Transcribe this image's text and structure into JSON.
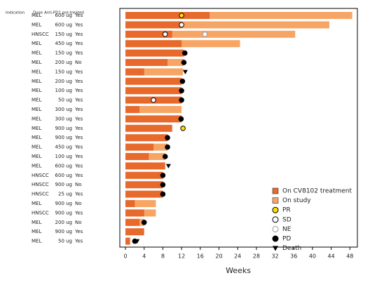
{
  "chart_data": {
    "type": "swimmer",
    "columns": [
      "Indication",
      "Dose",
      "Anti-PD1 pre-treated"
    ],
    "x_label": "Weeks",
    "xlim": [
      -1.2,
      49.6
    ],
    "xticks": [
      0,
      4,
      8,
      12,
      16,
      20,
      24,
      28,
      32,
      36,
      40,
      44,
      48
    ],
    "treatment_color": "#e8692c",
    "study_color": "#f7a564",
    "legend": [
      {
        "name": "On CV8102 treatment",
        "shape": "square",
        "fill": "#e8692c",
        "stroke": "#333"
      },
      {
        "name": "On study",
        "shape": "square",
        "fill": "#f7a564",
        "stroke": "#333"
      },
      {
        "name": "PR",
        "shape": "circle",
        "fill": "#ffe000",
        "stroke": "#000"
      },
      {
        "name": "SD",
        "shape": "circle",
        "fill": "#ffffff",
        "stroke": "#000"
      },
      {
        "name": "NE",
        "shape": "circle",
        "fill": "#ffffff",
        "stroke": "#999"
      },
      {
        "name": "PD",
        "shape": "circle",
        "fill": "#000000",
        "stroke": "#000"
      },
      {
        "name": "Death",
        "shape": "triangle",
        "fill": "#000000",
        "stroke": "#000"
      }
    ],
    "rows": [
      {
        "indication": "MEL",
        "dose": "600 ug",
        "pretreated": "Yes",
        "treatment": 18,
        "study": 48.5,
        "events": [
          {
            "kind": 2,
            "week": 12
          }
        ]
      },
      {
        "indication": "MEL",
        "dose": "600 ug",
        "pretreated": "Yes",
        "treatment": 12,
        "study": 43.6,
        "events": [
          {
            "kind": 3,
            "week": 12
          }
        ]
      },
      {
        "indication": "HNSCC",
        "dose": "150 ug",
        "pretreated": "Yes",
        "treatment": 10,
        "study": 36.3,
        "events": [
          {
            "kind": 3,
            "week": 8.5
          },
          {
            "kind": 4,
            "week": 17
          }
        ]
      },
      {
        "indication": "MEL",
        "dose": "450 ug",
        "pretreated": "Yes",
        "treatment": 12,
        "study": 24.5,
        "events": []
      },
      {
        "indication": "MEL",
        "dose": "150 ug",
        "pretreated": "Yes",
        "treatment": 12.5,
        "study": null,
        "events": [
          {
            "kind": 5,
            "week": 12.7
          }
        ]
      },
      {
        "indication": "MEL",
        "dose": "200 ug",
        "pretreated": "No",
        "treatment": 9,
        "study": 12.5,
        "events": [
          {
            "kind": 5,
            "week": 12.5
          }
        ]
      },
      {
        "indication": "MEL",
        "dose": "150 ug",
        "pretreated": "Yes",
        "treatment": 4,
        "study": 12.3,
        "events": [
          {
            "kind": 6,
            "week": 12.8
          }
        ]
      },
      {
        "indication": "MEL",
        "dose": "200 ug",
        "pretreated": "Yes",
        "treatment": 12,
        "study": null,
        "events": [
          {
            "kind": 5,
            "week": 12.2
          }
        ]
      },
      {
        "indication": "MEL",
        "dose": "100 ug",
        "pretreated": "Yes",
        "treatment": 12,
        "study": null,
        "events": [
          {
            "kind": 5,
            "week": 12
          }
        ]
      },
      {
        "indication": "MEL",
        "dose": "50 ug",
        "pretreated": "Yes",
        "treatment": 12,
        "study": null,
        "events": [
          {
            "kind": 3,
            "week": 6
          },
          {
            "kind": 5,
            "week": 12
          }
        ]
      },
      {
        "indication": "MEL",
        "dose": "300 ug",
        "pretreated": "Yes",
        "treatment": 3,
        "study": 12,
        "events": []
      },
      {
        "indication": "MEL",
        "dose": "300 ug",
        "pretreated": "Yes",
        "treatment": 12,
        "study": null,
        "events": [
          {
            "kind": 5,
            "week": 11.9
          }
        ]
      },
      {
        "indication": "MEL",
        "dose": "900 ug",
        "pretreated": "Yes",
        "treatment": 10,
        "study": null,
        "events": [
          {
            "kind": 2,
            "week": 12.3
          }
        ]
      },
      {
        "indication": "MEL",
        "dose": "900 ug",
        "pretreated": "Yes",
        "treatment": 9,
        "study": null,
        "events": [
          {
            "kind": 5,
            "week": 9
          }
        ]
      },
      {
        "indication": "MEL",
        "dose": "450 ug",
        "pretreated": "Yes",
        "treatment": 6,
        "study": 9,
        "events": [
          {
            "kind": 5,
            "week": 9
          }
        ]
      },
      {
        "indication": "MEL",
        "dose": "100 ug",
        "pretreated": "Yes",
        "treatment": 5,
        "study": 8.5,
        "events": [
          {
            "kind": 5,
            "week": 8.5
          }
        ]
      },
      {
        "indication": "MEL",
        "dose": "600 ug",
        "pretreated": "Yes",
        "treatment": 8.5,
        "study": null,
        "events": [
          {
            "kind": 6,
            "week": 9.2
          }
        ]
      },
      {
        "indication": "HNSCC",
        "dose": "600 ug",
        "pretreated": "Yes",
        "treatment": 8,
        "study": null,
        "events": [
          {
            "kind": 5,
            "week": 8
          }
        ]
      },
      {
        "indication": "HNSCC",
        "dose": "900 ug",
        "pretreated": "No",
        "treatment": 8,
        "study": null,
        "events": [
          {
            "kind": 5,
            "week": 8
          }
        ]
      },
      {
        "indication": "HNSCC",
        "dose": "25 ug",
        "pretreated": "Yes",
        "treatment": 8,
        "study": null,
        "events": [
          {
            "kind": 5,
            "week": 8
          }
        ]
      },
      {
        "indication": "MEL",
        "dose": "900 ug",
        "pretreated": "No",
        "treatment": 2,
        "study": 6.5,
        "events": []
      },
      {
        "indication": "HNSCC",
        "dose": "900 ug",
        "pretreated": "Yes",
        "treatment": 4,
        "study": 6.5,
        "events": []
      },
      {
        "indication": "MEL",
        "dose": "200 ug",
        "pretreated": "No",
        "treatment": 3,
        "study": 4,
        "events": [
          {
            "kind": 5,
            "week": 4
          }
        ]
      },
      {
        "indication": "MEL",
        "dose": "900 ug",
        "pretreated": "Yes",
        "treatment": 4,
        "study": null,
        "events": []
      },
      {
        "indication": "MEL",
        "dose": "50 ug",
        "pretreated": "Yes",
        "treatment": 1,
        "study": null,
        "events": [
          {
            "kind": 5,
            "week": 2
          },
          {
            "kind": 6,
            "week": 2.5
          }
        ]
      }
    ]
  }
}
